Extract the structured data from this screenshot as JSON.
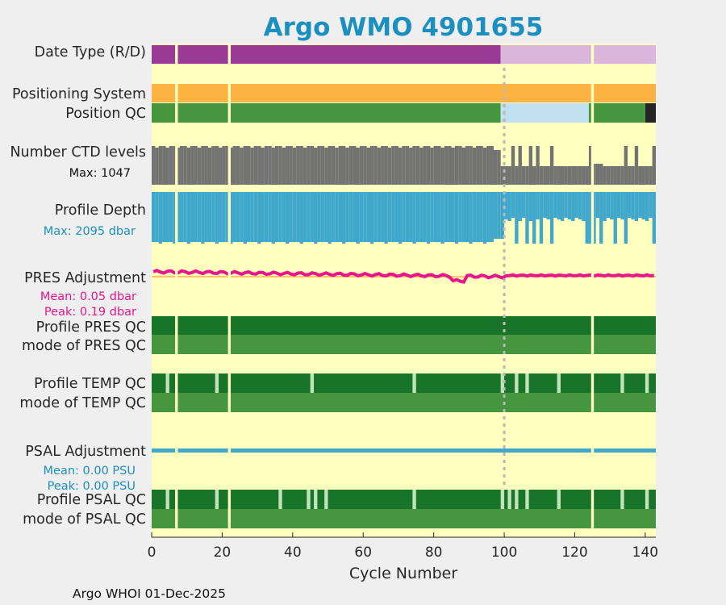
{
  "chart_data": {
    "type": "status-timeline",
    "title": "Argo WMO 4901655",
    "xlabel": "Cycle Number",
    "xlim": [
      0,
      143
    ],
    "xticks": [
      0,
      20,
      40,
      60,
      80,
      100,
      120,
      140
    ],
    "footer": "Argo WHOI 01-Dec-2025",
    "missing_cycles": [
      7,
      22,
      125
    ],
    "dashed_line_cycle": 100,
    "rows": {
      "date_type": {
        "label": "Date Type (R/D)",
        "segments": [
          {
            "from": 0,
            "to": 99,
            "value": "R"
          },
          {
            "from": 99,
            "to": 143,
            "value": "D"
          }
        ]
      },
      "positioning_system": {
        "label": "Positioning System",
        "value": "GPS"
      },
      "position_qc": {
        "label": "Position QC",
        "segments": [
          {
            "from": 0,
            "to": 99,
            "value": "1"
          },
          {
            "from": 99,
            "to": 124,
            "value": "8"
          },
          {
            "from": 124,
            "to": 140,
            "value": "1"
          },
          {
            "from": 140,
            "to": 143,
            "value": "missing"
          }
        ]
      },
      "ctd_levels": {
        "label": "Number CTD levels",
        "max_label": "Max: 1047",
        "max": 1047
      },
      "profile_depth": {
        "label": "Profile Depth",
        "max_label": "Max: 2095 dbar",
        "max": 2095
      },
      "pres_adjustment": {
        "label": "PRES Adjustment",
        "mean_label": "Mean: 0.05 dbar",
        "peak_label": "Peak: 0.19 dbar",
        "mean": 0.05,
        "peak": 0.19
      },
      "profile_pres_qc": {
        "label": "Profile PRES QC",
        "value": "A"
      },
      "mode_pres_qc": {
        "label": "mode of PRES QC",
        "value": "1"
      },
      "profile_temp_qc": {
        "label": "Profile TEMP QC",
        "flagged_cycles": [
          4,
          18,
          45,
          74,
          99,
          103,
          106,
          115,
          133,
          140
        ]
      },
      "mode_temp_qc": {
        "label": "mode of TEMP QC",
        "value": "1"
      },
      "psal_adjustment": {
        "label": "PSAL Adjustment",
        "mean_label": "Mean: 0.00 PSU",
        "peak_label": "Peak: 0.00 PSU",
        "mean": 0.0,
        "peak": 0.0
      },
      "profile_psal_qc": {
        "label": "Profile PSAL QC",
        "flagged_cycles": [
          4,
          18,
          36,
          44,
          46,
          49,
          74,
          99,
          101,
          103,
          106,
          115,
          133,
          140
        ]
      },
      "mode_psal_qc": {
        "label": "mode of PSAL QC",
        "value": "1"
      }
    },
    "colors": {
      "background": "#ffffc0",
      "real_time": "#993b96",
      "delayed": "#dbb6dc",
      "gps": "#fdb342",
      "good": "#45963f",
      "interpolated": "#c0e0f0",
      "missing": "#252525",
      "ctd": "#737373",
      "depth": "#41a7cb",
      "pres_adj": "#ea148c",
      "psal_adj": "#41a7cb",
      "qc_a": "#187428",
      "qc_flag": "#c2e2b8",
      "title": "#1b8fc0"
    }
  }
}
